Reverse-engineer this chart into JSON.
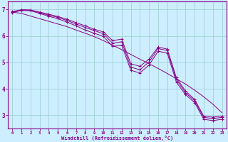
{
  "bg_color": "#cceeff",
  "line_color": "#880088",
  "grid_color": "#99cccc",
  "xlabel": "Windchill (Refroidissement éolien,°C)",
  "xlabel_color": "#880088",
  "tick_color": "#880088",
  "axis_color": "#880088",
  "xlim": [
    -0.5,
    23.5
  ],
  "ylim": [
    2.5,
    7.3
  ],
  "yticks": [
    3,
    4,
    5,
    6,
    7
  ],
  "xticks": [
    0,
    1,
    2,
    3,
    4,
    5,
    6,
    7,
    8,
    9,
    10,
    11,
    12,
    13,
    14,
    15,
    16,
    17,
    18,
    19,
    20,
    21,
    22,
    23
  ],
  "curve_straight": [
    6.9,
    6.85,
    6.75,
    6.65,
    6.55,
    6.45,
    6.35,
    6.22,
    6.1,
    5.97,
    5.82,
    5.65,
    5.48,
    5.3,
    5.12,
    4.95,
    4.77,
    4.58,
    4.38,
    4.18,
    3.95,
    3.7,
    3.42,
    3.1
  ],
  "curve_main": [
    6.9,
    6.98,
    6.97,
    6.88,
    6.78,
    6.7,
    6.58,
    6.45,
    6.32,
    6.2,
    6.08,
    5.72,
    5.78,
    4.82,
    4.72,
    5.02,
    5.52,
    5.45,
    4.35,
    3.85,
    3.55,
    2.92,
    2.88,
    2.92
  ],
  "curve_upper": [
    6.92,
    6.99,
    6.98,
    6.9,
    6.82,
    6.73,
    6.63,
    6.5,
    6.38,
    6.25,
    6.15,
    5.82,
    5.88,
    4.95,
    4.85,
    5.12,
    5.58,
    5.5,
    4.42,
    3.92,
    3.6,
    2.97,
    2.93,
    2.97
  ],
  "curve_lower": [
    6.88,
    6.96,
    6.95,
    6.85,
    6.74,
    6.65,
    6.52,
    6.38,
    6.22,
    6.1,
    5.98,
    5.6,
    5.65,
    4.7,
    4.6,
    4.9,
    5.42,
    5.35,
    4.25,
    3.78,
    3.48,
    2.85,
    2.8,
    2.85
  ]
}
